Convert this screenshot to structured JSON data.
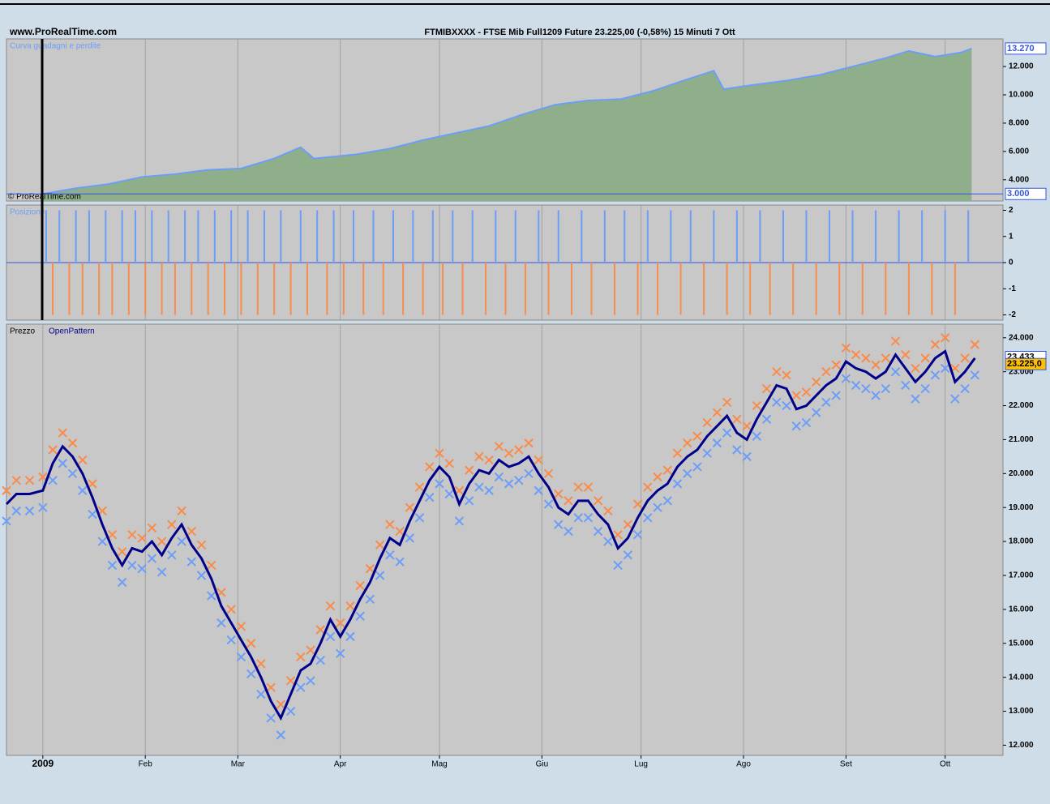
{
  "header": {
    "site": "www.ProRealTime.com",
    "title": "FTMIBXXXX - FTSE Mib Full1209 Future   23.225,00 (-0,58%)   15 Minuti  7 Ott"
  },
  "chart_data": [
    {
      "type": "area",
      "label": "Curva guadagni e perdite",
      "copyright": "© ProRealTime.com",
      "x": [
        0,
        10,
        20,
        30,
        40,
        50,
        60,
        70,
        78,
        82,
        95,
        105,
        115,
        125,
        135,
        145,
        155,
        165,
        175,
        185,
        195,
        203,
        206,
        215,
        225,
        235,
        245,
        255,
        262,
        270,
        278,
        281
      ],
      "values": [
        3000,
        3400,
        3700,
        4200,
        4400,
        4700,
        4800,
        5500,
        6300,
        5500,
        5800,
        6200,
        6800,
        7300,
        7800,
        8600,
        9300,
        9600,
        9700,
        10300,
        11100,
        11700,
        10400,
        10700,
        11000,
        11400,
        12000,
        12600,
        13100,
        12700,
        13000,
        13270
      ],
      "color": "#6c9ef8",
      "fill": "#8fae8a",
      "xlim": [
        -11,
        290.5
      ],
      "ylim": [
        2500,
        13950
      ],
      "yticks": [
        {
          "value": 4000,
          "label": "4.000"
        },
        {
          "value": 6000,
          "label": "6.000"
        },
        {
          "value": 8000,
          "label": "8.000"
        },
        {
          "value": 10000,
          "label": "10.000"
        },
        {
          "value": 12000,
          "label": "12.000"
        }
      ],
      "price_tags": [
        {
          "value": 13270,
          "label": "13.270"
        },
        {
          "value": 3000,
          "label": "3.000"
        }
      ]
    },
    {
      "type": "bar",
      "label": "Posizione",
      "x": [
        1,
        3,
        5,
        8,
        10,
        12,
        14,
        17,
        19,
        21,
        24,
        26,
        28,
        31,
        33,
        36,
        38,
        40,
        43,
        45,
        47,
        50,
        52,
        55,
        57,
        60,
        62,
        65,
        67,
        70,
        72,
        75,
        78,
        80,
        83,
        86,
        88,
        91,
        94,
        97,
        100,
        103,
        106,
        109,
        112,
        115,
        118,
        121,
        124,
        127,
        130,
        134,
        137,
        140,
        143,
        146,
        150,
        153,
        156,
        160,
        163,
        166,
        170,
        173,
        176,
        180,
        183,
        186,
        190,
        193,
        196,
        200,
        203,
        207,
        210,
        214,
        217,
        220,
        224,
        227,
        231,
        234,
        238,
        241,
        245,
        248,
        252,
        255,
        259,
        262,
        266,
        269,
        273,
        276,
        280
      ],
      "values": [
        2,
        -2,
        2,
        -2,
        2,
        -2,
        2,
        -2,
        2,
        -2,
        2,
        -2,
        2,
        -2,
        2,
        -2,
        2,
        -2,
        2,
        -2,
        2,
        -2,
        2,
        -2,
        2,
        -2,
        2,
        -2,
        2,
        -2,
        2,
        -2,
        2,
        -2,
        2,
        -2,
        2,
        -2,
        2,
        -2,
        2,
        -2,
        2,
        -2,
        2,
        -2,
        2,
        -2,
        2,
        -2,
        2,
        -2,
        2,
        -2,
        2,
        -2,
        2,
        -2,
        2,
        -2,
        2,
        -2,
        2,
        -2,
        2,
        -2,
        2,
        -2,
        2,
        -2,
        2,
        -2,
        2,
        -2,
        2,
        -2,
        2,
        -2,
        2,
        -2,
        2,
        -2,
        2,
        -2,
        2,
        -2,
        2,
        -2,
        2,
        -2,
        2,
        -2,
        2,
        -2,
        2
      ],
      "colors": {
        "up": "#6c9ef8",
        "down": "#f98c4a"
      },
      "xlim": [
        -11,
        290.5
      ],
      "ylim": [
        -2.2,
        2.2
      ],
      "yticks": [
        -2,
        -1,
        0,
        1,
        2
      ]
    },
    {
      "type": "line",
      "label": "Prezzo",
      "x": [
        -11,
        -8,
        -4,
        0,
        3,
        6,
        9,
        12,
        15,
        18,
        21,
        24,
        27,
        30,
        33,
        36,
        39,
        42,
        45,
        48,
        51,
        54,
        57,
        60,
        63,
        66,
        69,
        72,
        75,
        78,
        81,
        84,
        87,
        90,
        93,
        96,
        99,
        102,
        105,
        108,
        111,
        114,
        117,
        120,
        123,
        126,
        129,
        132,
        135,
        138,
        141,
        144,
        147,
        150,
        153,
        156,
        159,
        162,
        165,
        168,
        171,
        174,
        177,
        180,
        183,
        186,
        189,
        192,
        195,
        198,
        201,
        204,
        207,
        210,
        213,
        216,
        219,
        222,
        225,
        228,
        231,
        234,
        237,
        240,
        243,
        246,
        249,
        252,
        255,
        258,
        261,
        264,
        267,
        270,
        273,
        276,
        279,
        282
      ],
      "series": [
        {
          "name": "OpenPattern",
          "color": "#00008b",
          "values": [
            19100,
            19400,
            19400,
            19500,
            20300,
            20800,
            20500,
            20000,
            19300,
            18500,
            17800,
            17300,
            17800,
            17700,
            18000,
            17600,
            18100,
            18500,
            17900,
            17500,
            16900,
            16100,
            15600,
            15100,
            14600,
            14000,
            13300,
            12800,
            13500,
            14200,
            14400,
            15000,
            15700,
            15200,
            15700,
            16300,
            16800,
            17500,
            18100,
            17900,
            18600,
            19200,
            19800,
            20200,
            19900,
            19100,
            19700,
            20100,
            20000,
            20400,
            20200,
            20300,
            20500,
            20000,
            19600,
            19000,
            18800,
            19200,
            19200,
            18800,
            18500,
            17800,
            18100,
            18700,
            19200,
            19500,
            19700,
            20200,
            20500,
            20700,
            21100,
            21400,
            21700,
            21200,
            21000,
            21600,
            22100,
            22600,
            22500,
            21900,
            22000,
            22300,
            22600,
            22800,
            23300,
            23100,
            23000,
            22800,
            23000,
            23500,
            23100,
            22700,
            23000,
            23400,
            23600,
            22700,
            23000,
            23400
          ]
        },
        {
          "color": "#f98c4a",
          "marker": "x",
          "values": [
            19500,
            19800,
            19800,
            19900,
            20700,
            21200,
            20900,
            20400,
            19700,
            18900,
            18200,
            17700,
            18200,
            18100,
            18400,
            18000,
            18500,
            18900,
            18300,
            17900,
            17300,
            16500,
            16000,
            15500,
            15000,
            14400,
            13700,
            13200,
            13900,
            14600,
            14800,
            15400,
            16100,
            15600,
            16100,
            16700,
            17200,
            17900,
            18500,
            18300,
            19000,
            19600,
            20200,
            20600,
            20300,
            19500,
            20100,
            20500,
            20400,
            20800,
            20600,
            20700,
            20900,
            20400,
            20000,
            19400,
            19200,
            19600,
            19600,
            19200,
            18900,
            18200,
            18500,
            19100,
            19600,
            19900,
            20100,
            20600,
            20900,
            21100,
            21500,
            21800,
            22100,
            21600,
            21400,
            22000,
            22500,
            23000,
            22900,
            22300,
            22400,
            22700,
            23000,
            23200,
            23700,
            23500,
            23400,
            23200,
            23400,
            23900,
            23500,
            23100,
            23400,
            23800,
            24000,
            23100,
            23400,
            23800
          ]
        },
        {
          "color": "#6c9ef8",
          "marker": "x",
          "values": [
            18600,
            18900,
            18900,
            19000,
            19800,
            20300,
            20000,
            19500,
            18800,
            18000,
            17300,
            16800,
            17300,
            17200,
            17500,
            17100,
            17600,
            18000,
            17400,
            17000,
            16400,
            15600,
            15100,
            14600,
            14100,
            13500,
            12800,
            12300,
            13000,
            13700,
            13900,
            14500,
            15200,
            14700,
            15200,
            15800,
            16300,
            17000,
            17600,
            17400,
            18100,
            18700,
            19300,
            19700,
            19400,
            18600,
            19200,
            19600,
            19500,
            19900,
            19700,
            19800,
            20000,
            19500,
            19100,
            18500,
            18300,
            18700,
            18700,
            18300,
            18000,
            17300,
            17600,
            18200,
            18700,
            19000,
            19200,
            19700,
            20000,
            20200,
            20600,
            20900,
            21200,
            20700,
            20500,
            21100,
            21600,
            22100,
            22000,
            21400,
            21500,
            21800,
            22100,
            22300,
            22800,
            22600,
            22500,
            22300,
            22500,
            23000,
            22600,
            22200,
            22500,
            22900,
            23100,
            22200,
            22500,
            22900
          ]
        }
      ],
      "xlim": [
        -11,
        290.5
      ],
      "ylim": [
        11700,
        24400
      ],
      "xticks": [
        {
          "value": 0,
          "label": "2009"
        },
        {
          "value": 31,
          "label": "Feb"
        },
        {
          "value": 59,
          "label": "Mar"
        },
        {
          "value": 90,
          "label": "Apr"
        },
        {
          "value": 120,
          "label": "Mag"
        },
        {
          "value": 151,
          "label": "Giu"
        },
        {
          "value": 181,
          "label": "Lug"
        },
        {
          "value": 212,
          "label": "Ago"
        },
        {
          "value": 243,
          "label": "Set"
        },
        {
          "value": 273,
          "label": "Ott"
        }
      ],
      "yticks": [
        {
          "value": 12000,
          "label": "12.000"
        },
        {
          "value": 13000,
          "label": "13.000"
        },
        {
          "value": 14000,
          "label": "14.000"
        },
        {
          "value": 15000,
          "label": "15.000"
        },
        {
          "value": 16000,
          "label": "16.000"
        },
        {
          "value": 17000,
          "label": "17.000"
        },
        {
          "value": 18000,
          "label": "18.000"
        },
        {
          "value": 19000,
          "label": "19.000"
        },
        {
          "value": 20000,
          "label": "20.000"
        },
        {
          "value": 21000,
          "label": "21.000"
        },
        {
          "value": 22000,
          "label": "22.000"
        },
        {
          "value": 23000,
          "label": "23.000"
        },
        {
          "value": 24000,
          "label": "24.000"
        }
      ],
      "price_tags": [
        {
          "value": 23433,
          "label": "23.433",
          "fill": "#ffffff"
        },
        {
          "value": 23225,
          "label": "23.225,0",
          "fill": "#ffc000"
        }
      ]
    }
  ]
}
